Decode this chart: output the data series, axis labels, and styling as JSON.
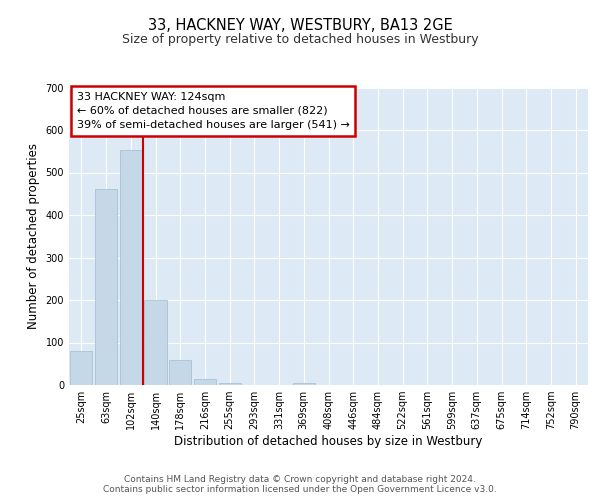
{
  "title": "33, HACKNEY WAY, WESTBURY, BA13 2GE",
  "subtitle": "Size of property relative to detached houses in Westbury",
  "xlabel": "Distribution of detached houses by size in Westbury",
  "ylabel": "Number of detached properties",
  "bar_labels": [
    "25sqm",
    "63sqm",
    "102sqm",
    "140sqm",
    "178sqm",
    "216sqm",
    "255sqm",
    "293sqm",
    "331sqm",
    "369sqm",
    "408sqm",
    "446sqm",
    "484sqm",
    "522sqm",
    "561sqm",
    "599sqm",
    "637sqm",
    "675sqm",
    "714sqm",
    "752sqm",
    "790sqm"
  ],
  "bar_values": [
    80,
    462,
    553,
    201,
    58,
    15,
    5,
    0,
    0,
    5,
    0,
    0,
    0,
    0,
    0,
    0,
    0,
    0,
    0,
    0,
    0
  ],
  "bar_color": "#c5d8e8",
  "bar_edge_color": "#a0bcd4",
  "vline_x": 2.5,
  "vline_color": "#cc0000",
  "annotation_title": "33 HACKNEY WAY: 124sqm",
  "annotation_line1": "← 60% of detached houses are smaller (822)",
  "annotation_line2": "39% of semi-detached houses are larger (541) →",
  "annotation_box_color": "#ffffff",
  "annotation_box_edgecolor": "#cc0000",
  "ylim": [
    0,
    700
  ],
  "yticks": [
    0,
    100,
    200,
    300,
    400,
    500,
    600,
    700
  ],
  "footer1": "Contains HM Land Registry data © Crown copyright and database right 2024.",
  "footer2": "Contains public sector information licensed under the Open Government Licence v3.0.",
  "background_color": "#ddeaf5",
  "fig_background": "#ffffff",
  "grid_color": "#ffffff",
  "title_fontsize": 10.5,
  "subtitle_fontsize": 9,
  "axis_label_fontsize": 8.5,
  "tick_fontsize": 7,
  "annotation_fontsize": 8,
  "footer_fontsize": 6.5
}
